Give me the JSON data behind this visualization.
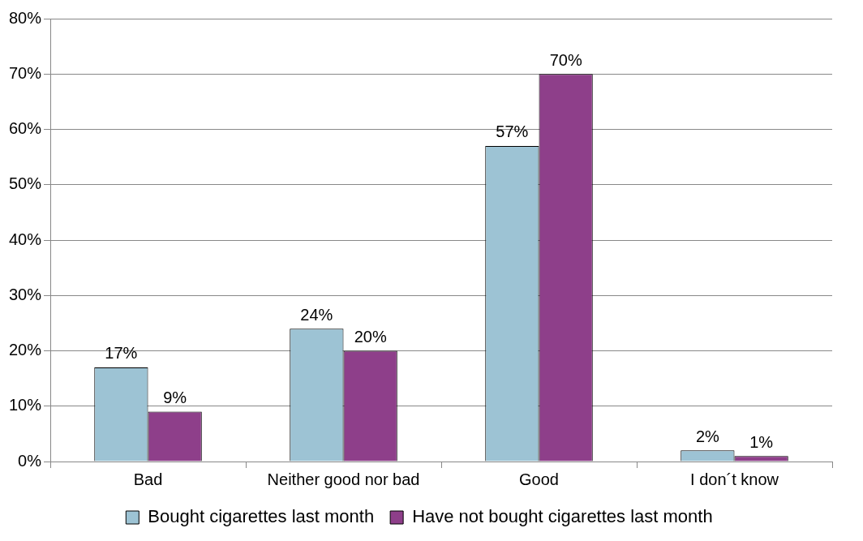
{
  "chart_data": {
    "type": "bar",
    "categories": [
      "Bad",
      "Neither good nor bad",
      "Good",
      "I don´t know"
    ],
    "series": [
      {
        "name": "Bought cigarettes last month",
        "color": "#9dc3d4",
        "values": [
          17,
          24,
          57,
          2
        ],
        "value_labels": [
          "17%",
          "24%",
          "57%",
          "2%"
        ]
      },
      {
        "name": "Have not bought cigarettes last month",
        "color": "#8e3f8a",
        "values": [
          9,
          20,
          70,
          1
        ],
        "value_labels": [
          "9%",
          "20%",
          "70%",
          "1%"
        ]
      }
    ],
    "ylim": [
      0,
      80
    ],
    "yticks": [
      {
        "value": 0,
        "label": "0%"
      },
      {
        "value": 10,
        "label": "10%"
      },
      {
        "value": 20,
        "label": "20%"
      },
      {
        "value": 30,
        "label": "30%"
      },
      {
        "value": 40,
        "label": "40%"
      },
      {
        "value": 50,
        "label": "50%"
      },
      {
        "value": 60,
        "label": "60%"
      },
      {
        "value": 70,
        "label": "70%"
      },
      {
        "value": 80,
        "label": "80%"
      }
    ],
    "grid": "y",
    "legend": "bottom"
  }
}
